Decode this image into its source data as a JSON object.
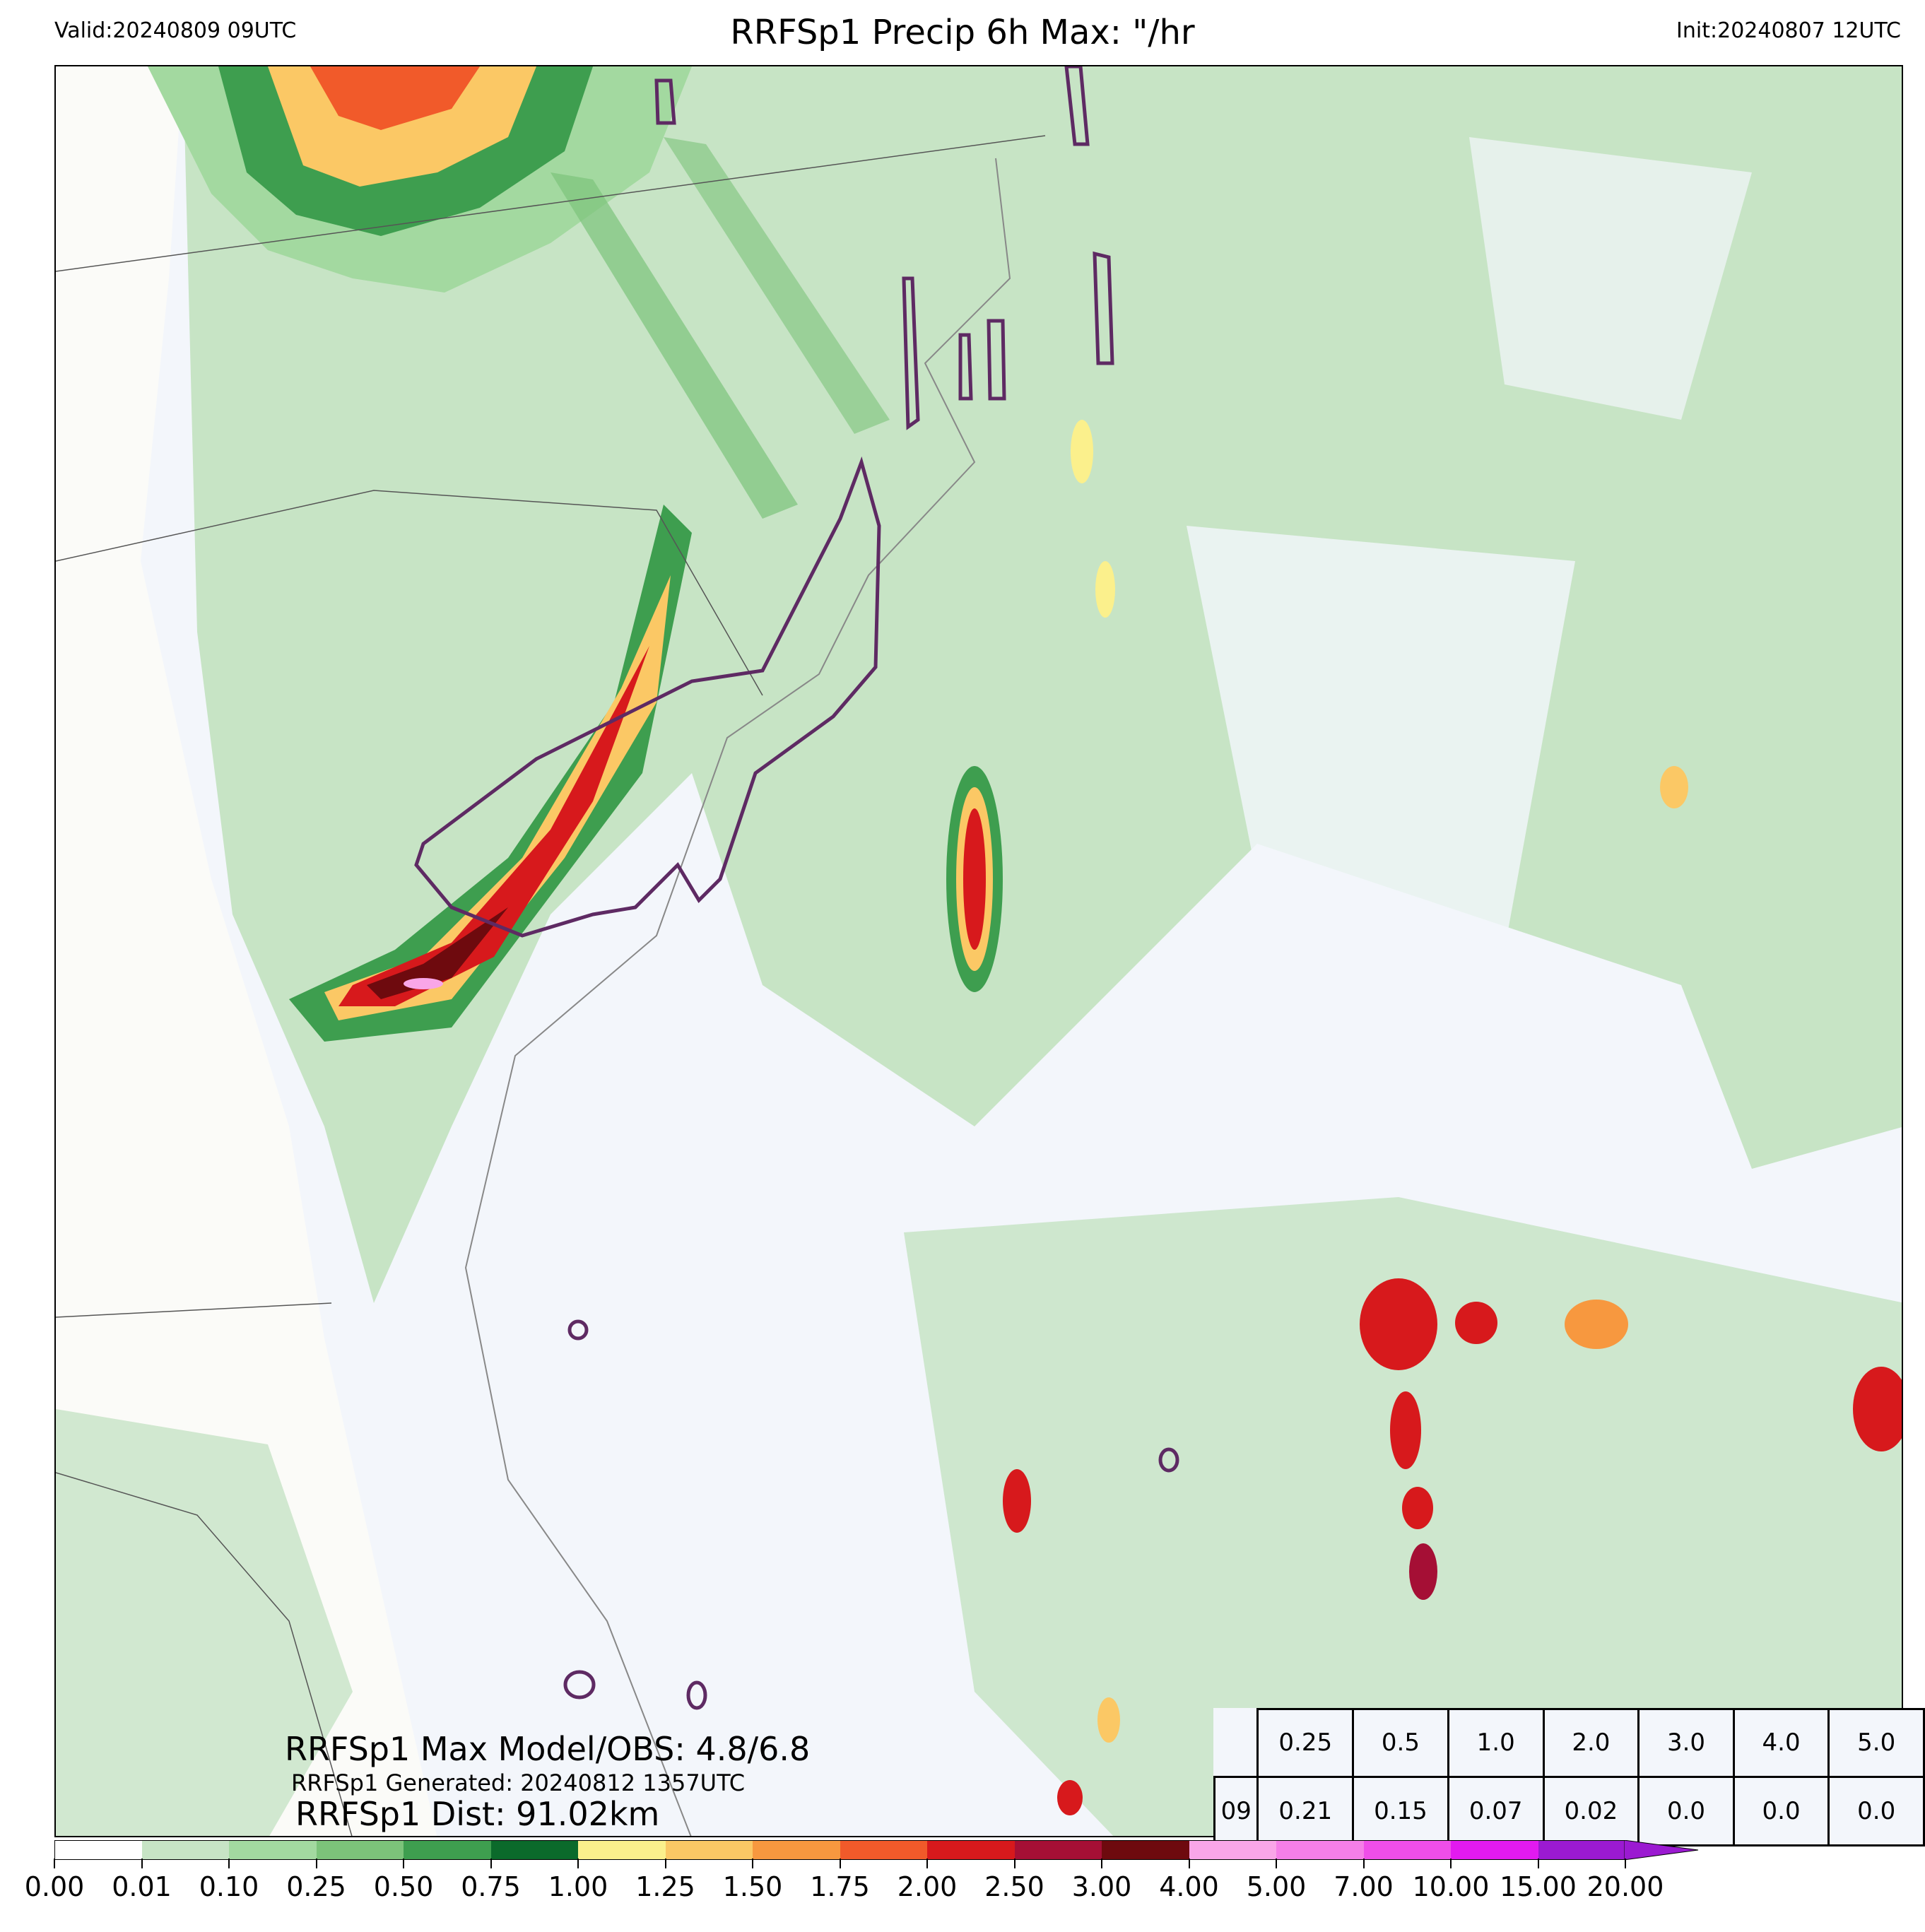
{
  "header": {
    "valid": "Valid:20240809 09UTC",
    "title": "RRFSp1 Precip 6h Max: \"/hr",
    "init": "Init:20240807 12UTC"
  },
  "stats": {
    "max_model_obs": "RRFSp1 Max Model/OBS: 4.8/6.8",
    "generated": "RRFSp1 Generated: 20240812 1357UTC",
    "dist": "RRFSp1 Dist: 91.02km"
  },
  "threshold_table": {
    "thresholds": [
      "0.25",
      "0.5",
      "1.0",
      "2.0",
      "3.0",
      "4.0",
      "5.0"
    ],
    "row_label": "09",
    "values": [
      "0.21",
      "0.15",
      "0.07",
      "0.02",
      "0.0",
      "0.0",
      "0.0"
    ]
  },
  "colorbar": {
    "labels": [
      "0.00",
      "0.01",
      "0.10",
      "0.25",
      "0.50",
      "0.75",
      "1.00",
      "1.25",
      "1.50",
      "1.75",
      "2.00",
      "2.50",
      "3.00",
      "4.00",
      "5.00",
      "7.00",
      "10.00",
      "15.00",
      "20.00"
    ],
    "colors": [
      "#ffffff",
      "#c7e4c5",
      "#a3d9a0",
      "#7cc37a",
      "#3e9e4f",
      "#0b6a2b",
      "#fbf08c",
      "#fbc865",
      "#f7983f",
      "#f15a2a",
      "#d7191c",
      "#a50f35",
      "#6e0a0e",
      "#f9a6e8",
      "#f57fe8",
      "#ef4ee9",
      "#e21af0",
      "#9b1ad1"
    ]
  },
  "map_colors": {
    "ocean": "#f3f6fb",
    "land": "#fbfbf8",
    "obs_contour": "#5e2a63"
  }
}
